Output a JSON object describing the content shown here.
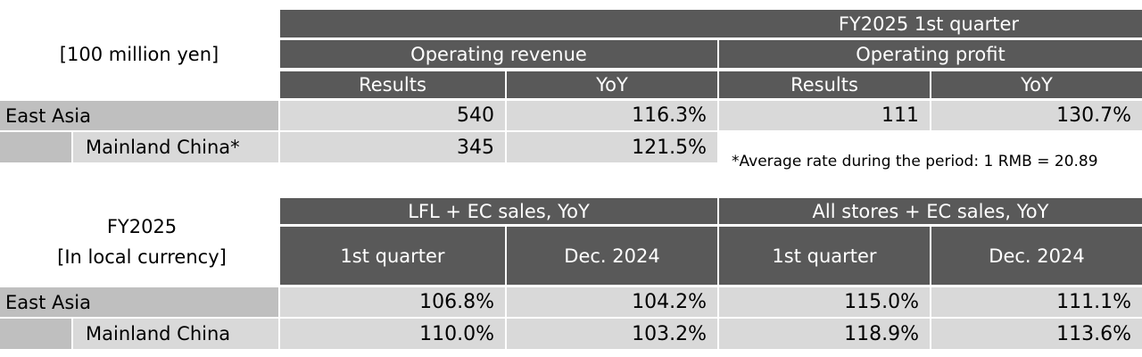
{
  "table1": {
    "unit_label": "[100 million yen]",
    "period_header": "FY2025 1st quarter",
    "group_headers": [
      "Operating revenue",
      "Operating profit"
    ],
    "sub_headers": [
      "Results",
      "YoY",
      "Results",
      "YoY"
    ],
    "rows": [
      {
        "label": "East Asia",
        "values": [
          "540",
          "116.3%",
          "111",
          "130.7%"
        ]
      },
      {
        "label": "Mainland China*",
        "values": [
          "345",
          "121.5%"
        ]
      }
    ],
    "footnote": "*Average rate during the period: 1 RMB = 20.89"
  },
  "table2": {
    "title_line1": "FY2025",
    "title_line2": "[In local currency]",
    "group_headers": [
      "LFL + EC sales, YoY",
      "All stores + EC sales, YoY"
    ],
    "sub_headers": [
      "1st quarter",
      "Dec. 2024",
      "1st quarter",
      "Dec. 2024"
    ],
    "rows": [
      {
        "label": "East Asia",
        "values": [
          "106.8%",
          "104.2%",
          "115.0%",
          "111.1%"
        ]
      },
      {
        "label": "Mainland China",
        "values": [
          "110.0%",
          "103.2%",
          "118.9%",
          "113.6%"
        ]
      }
    ]
  }
}
